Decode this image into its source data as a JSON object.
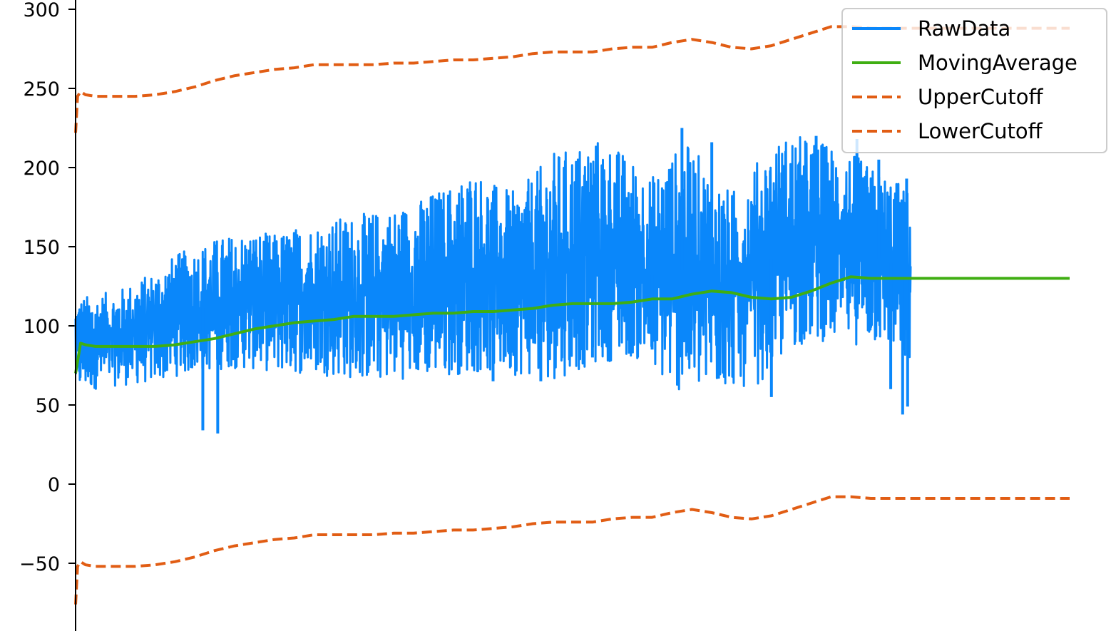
{
  "chart_data": {
    "type": "line",
    "title": "",
    "xlabel": "",
    "ylabel": "",
    "ylim": [
      -92,
      304
    ],
    "xlim": [
      0,
      1000
    ],
    "yticks": [
      300,
      250,
      200,
      150,
      100,
      50,
      0,
      -50
    ],
    "ytick_labels": [
      "300",
      "250",
      "200",
      "150",
      "100",
      "50",
      "0",
      "−50"
    ],
    "grid": false,
    "legend_position": "top-right",
    "colors": {
      "raw": "#0a87fa",
      "moving": "#3fae12",
      "upper": "#e15d14",
      "lower": "#e15d14"
    },
    "legend": [
      "RawData",
      "MovingAverage",
      "UpperCutoff",
      "LowerCutoff"
    ],
    "series": [
      {
        "name": "RawData",
        "style": "solid",
        "x_end": 840,
        "envelope_x": [
          0,
          20,
          40,
          60,
          80,
          100,
          120,
          140,
          160,
          180,
          200,
          220,
          240,
          260,
          280,
          300,
          320,
          340,
          360,
          380,
          400,
          420,
          440,
          460,
          480,
          500,
          520,
          540,
          560,
          580,
          600,
          620,
          640,
          660,
          680,
          700,
          720,
          740,
          760,
          780,
          800,
          820,
          840
        ],
        "envelope_low": [
          58,
          60,
          62,
          63,
          64,
          68,
          70,
          72,
          73,
          72,
          71,
          70,
          69,
          68,
          66,
          65,
          66,
          67,
          68,
          69,
          70,
          70,
          69,
          68,
          66,
          70,
          75,
          78,
          80,
          70,
          60,
          55,
          58,
          62,
          60,
          70,
          85,
          90,
          90,
          88,
          88,
          85,
          70
        ],
        "envelope_high": [
          118,
          120,
          122,
          128,
          135,
          145,
          150,
          155,
          158,
          160,
          158,
          162,
          165,
          168,
          170,
          172,
          175,
          178,
          185,
          190,
          200,
          190,
          185,
          195,
          210,
          212,
          220,
          215,
          205,
          195,
          210,
          215,
          195,
          185,
          200,
          215,
          222,
          218,
          215,
          210,
          200,
          195,
          185
        ],
        "spikes": [
          {
            "x": 128,
            "y": 34
          },
          {
            "x": 143,
            "y": 32
          },
          {
            "x": 420,
            "y": 65
          },
          {
            "x": 468,
            "y": 65
          },
          {
            "x": 520,
            "y": 80
          },
          {
            "x": 580,
            "y": 85
          },
          {
            "x": 640,
            "y": 216
          },
          {
            "x": 610,
            "y": 225
          },
          {
            "x": 700,
            "y": 55
          },
          {
            "x": 745,
            "y": 220
          },
          {
            "x": 786,
            "y": 218
          },
          {
            "x": 808,
            "y": 205
          },
          {
            "x": 832,
            "y": 44
          },
          {
            "x": 837,
            "y": 49
          },
          {
            "x": 836,
            "y": 193
          },
          {
            "x": 820,
            "y": 60
          }
        ]
      },
      {
        "name": "MovingAverage",
        "style": "solid",
        "x": [
          0,
          5,
          10,
          20,
          40,
          60,
          80,
          100,
          120,
          140,
          160,
          180,
          200,
          220,
          240,
          260,
          280,
          300,
          320,
          340,
          360,
          380,
          400,
          420,
          440,
          460,
          480,
          500,
          520,
          540,
          560,
          580,
          600,
          620,
          640,
          660,
          680,
          700,
          720,
          740,
          760,
          780,
          800,
          820,
          840,
          900,
          1000
        ],
        "y": [
          70,
          89,
          88,
          87,
          87,
          87,
          87,
          88,
          90,
          92,
          95,
          98,
          100,
          102,
          103,
          104,
          106,
          106,
          106,
          107,
          108,
          108,
          109,
          109,
          110,
          111,
          113,
          114,
          114,
          114,
          115,
          117,
          117,
          120,
          122,
          121,
          118,
          117,
          118,
          122,
          127,
          131,
          130,
          130,
          130,
          130,
          130
        ]
      },
      {
        "name": "UpperCutoff",
        "style": "dashed",
        "x": [
          0,
          2,
          5,
          10,
          20,
          40,
          60,
          80,
          100,
          120,
          140,
          160,
          180,
          200,
          220,
          240,
          260,
          280,
          300,
          320,
          340,
          360,
          380,
          400,
          420,
          440,
          460,
          480,
          500,
          520,
          540,
          560,
          580,
          600,
          620,
          640,
          660,
          680,
          700,
          720,
          740,
          760,
          780,
          800,
          820,
          840,
          900,
          1000
        ],
        "y": [
          222,
          245,
          248,
          246,
          245,
          245,
          245,
          246,
          248,
          251,
          255,
          258,
          260,
          262,
          263,
          265,
          265,
          265,
          265,
          266,
          266,
          267,
          268,
          268,
          269,
          270,
          272,
          273,
          273,
          273,
          275,
          276,
          276,
          279,
          281,
          279,
          276,
          275,
          277,
          281,
          285,
          289,
          289,
          288,
          288,
          288,
          288,
          288
        ]
      },
      {
        "name": "LowerCutoff",
        "style": "dashed",
        "x": [
          0,
          2,
          5,
          10,
          20,
          40,
          60,
          80,
          100,
          120,
          140,
          160,
          180,
          200,
          220,
          240,
          260,
          280,
          300,
          320,
          340,
          360,
          380,
          400,
          420,
          440,
          460,
          480,
          500,
          520,
          540,
          560,
          580,
          600,
          620,
          640,
          660,
          680,
          700,
          720,
          740,
          760,
          780,
          800,
          820,
          840,
          900,
          1000
        ],
        "y": [
          -76,
          -52,
          -49,
          -51,
          -52,
          -52,
          -52,
          -51,
          -49,
          -46,
          -42,
          -39,
          -37,
          -35,
          -34,
          -32,
          -32,
          -32,
          -32,
          -31,
          -31,
          -30,
          -29,
          -29,
          -28,
          -27,
          -25,
          -24,
          -24,
          -24,
          -22,
          -21,
          -21,
          -18,
          -16,
          -18,
          -21,
          -22,
          -20,
          -16,
          -12,
          -8,
          -8,
          -9,
          -9,
          -9,
          -9,
          -9
        ]
      }
    ]
  }
}
